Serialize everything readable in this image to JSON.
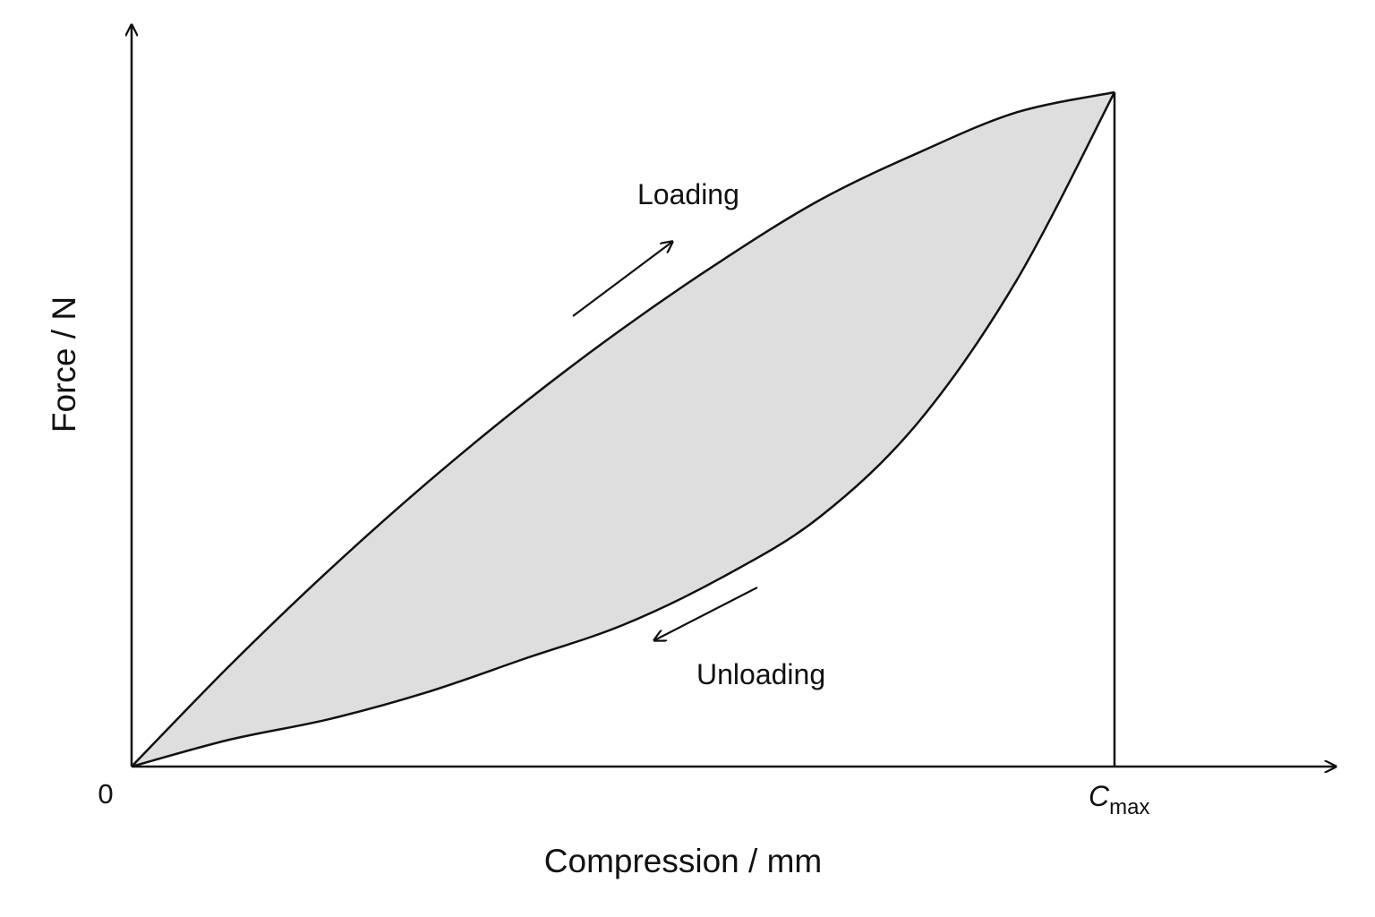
{
  "chart_data": {
    "type": "area",
    "title": "",
    "xlabel": "Compression / mm",
    "ylabel": "Force / N",
    "x_ticks": [
      {
        "value": 0,
        "label": "0"
      },
      {
        "value": 1,
        "label_main": "C",
        "label_sub": "max"
      }
    ],
    "xlim": [
      0,
      1.23
    ],
    "ylim": [
      0,
      1.1
    ],
    "grid": false,
    "legend": "none",
    "fill_between_series": true,
    "fill_color": "#dedede",
    "line_color": "#111111",
    "series": [
      {
        "name": "Loading",
        "direction": "increasing",
        "x": [
          0,
          0.1,
          0.2,
          0.3,
          0.4,
          0.5,
          0.6,
          0.7,
          0.8,
          0.9,
          1.0
        ],
        "y": [
          0,
          0.15,
          0.29,
          0.42,
          0.54,
          0.65,
          0.75,
          0.84,
          0.91,
          0.97,
          1.0
        ]
      },
      {
        "name": "Unloading",
        "direction": "decreasing",
        "x": [
          1.0,
          0.9,
          0.8,
          0.7,
          0.6,
          0.5,
          0.4,
          0.3,
          0.2,
          0.1,
          0
        ],
        "y": [
          1.0,
          0.72,
          0.51,
          0.37,
          0.28,
          0.21,
          0.16,
          0.11,
          0.07,
          0.04,
          0
        ]
      }
    ],
    "vertical_line": {
      "x": 1.0
    },
    "annotations": [
      {
        "text": "Loading",
        "series": "Loading"
      },
      {
        "text": "Unloading",
        "series": "Unloading"
      }
    ]
  }
}
